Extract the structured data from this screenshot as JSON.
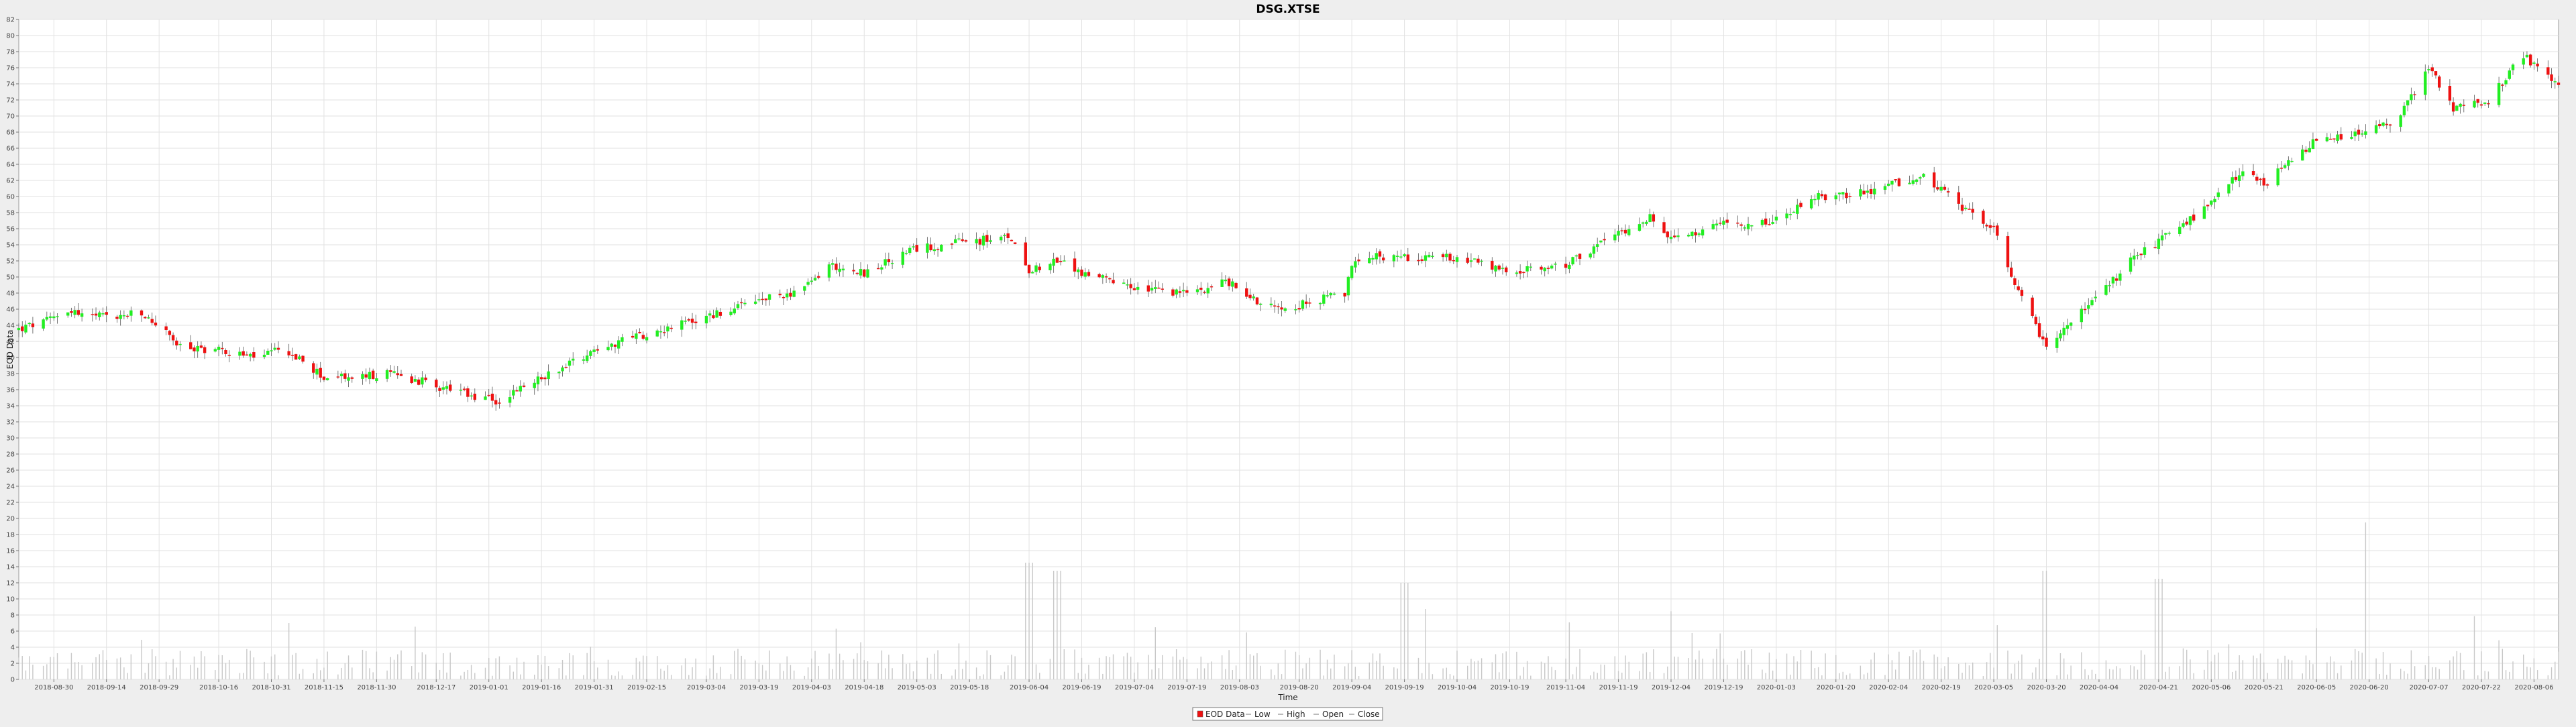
{
  "chart_data": {
    "type": "candlestick",
    "title": "DSG.XTSE",
    "xlabel": "Time",
    "ylabel": "EOD Data",
    "ylim": [
      0,
      82
    ],
    "y_ticks": [
      0,
      2,
      4,
      6,
      8,
      10,
      12,
      14,
      16,
      18,
      20,
      22,
      24,
      26,
      28,
      30,
      32,
      34,
      36,
      38,
      40,
      42,
      44,
      46,
      48,
      50,
      52,
      54,
      56,
      58,
      60,
      62,
      64,
      66,
      68,
      70,
      72,
      74,
      76,
      78,
      80,
      82
    ],
    "x_range": [
      "2018-08-20",
      "2020-08-13"
    ],
    "x_ticks": [
      "2018-08-30",
      "2018-09-14",
      "2018-09-29",
      "2018-10-16",
      "2018-10-31",
      "2018-11-15",
      "2018-11-30",
      "2018-12-17",
      "2019-01-01",
      "2019-01-16",
      "2019-01-31",
      "2019-02-15",
      "2019-03-04",
      "2019-03-19",
      "2019-04-03",
      "2019-04-18",
      "2019-05-03",
      "2019-05-18",
      "2019-06-04",
      "2019-06-19",
      "2019-07-04",
      "2019-07-19",
      "2019-08-03",
      "2019-08-20",
      "2019-09-04",
      "2019-09-19",
      "2019-10-04",
      "2019-10-19",
      "2019-11-04",
      "2019-11-19",
      "2019-12-04",
      "2019-12-19",
      "2020-01-03",
      "2020-01-20",
      "2020-02-04",
      "2020-02-19",
      "2020-03-05",
      "2020-03-20",
      "2020-04-04",
      "2020-04-21",
      "2020-05-06",
      "2020-05-21",
      "2020-06-05",
      "2020-06-20",
      "2020-07-07",
      "2020-07-22",
      "2020-08-06"
    ],
    "grid": true,
    "legend_position": "bottom-center",
    "legend": [
      {
        "label": "EOD Data",
        "symbol": "box"
      },
      {
        "label": "Low",
        "symbol": "line"
      },
      {
        "label": "High",
        "symbol": "line"
      },
      {
        "label": "Open",
        "symbol": "line"
      },
      {
        "label": "Close",
        "symbol": "line"
      }
    ],
    "colors": {
      "up": "#22ee22",
      "down": "#ee1111",
      "volume": "#c8c8c8",
      "wick": "#555555"
    },
    "close_path": [
      [
        "2018-08-20",
        43.5
      ],
      [
        "2018-08-28",
        44.5
      ],
      [
        "2018-09-03",
        46.0
      ],
      [
        "2018-09-08",
        45.2
      ],
      [
        "2018-09-17",
        45.0
      ],
      [
        "2018-09-23",
        45.5
      ],
      [
        "2018-09-29",
        44.0
      ],
      [
        "2018-10-05",
        41.2
      ],
      [
        "2018-10-16",
        41.0
      ],
      [
        "2018-10-26",
        40.0
      ],
      [
        "2018-11-04",
        41.0
      ],
      [
        "2018-11-15",
        37.5
      ],
      [
        "2018-11-24",
        37.5
      ],
      [
        "2018-12-05",
        38.0
      ],
      [
        "2018-12-17",
        36.5
      ],
      [
        "2018-12-28",
        35.0
      ],
      [
        "2019-01-04",
        34.5
      ],
      [
        "2019-01-16",
        37.5
      ],
      [
        "2019-01-31",
        41.0
      ],
      [
        "2019-02-15",
        43.0
      ],
      [
        "2019-03-04",
        45.0
      ],
      [
        "2019-03-19",
        47.0
      ],
      [
        "2019-04-01",
        48.5
      ],
      [
        "2019-04-08",
        51.5
      ],
      [
        "2019-04-18",
        50.5
      ],
      [
        "2019-05-03",
        53.5
      ],
      [
        "2019-05-18",
        54.5
      ],
      [
        "2019-05-30",
        54.8
      ],
      [
        "2019-06-04",
        51.0
      ],
      [
        "2019-06-12",
        52.0
      ],
      [
        "2019-06-19",
        50.5
      ],
      [
        "2019-07-04",
        48.5
      ],
      [
        "2019-07-19",
        48.0
      ],
      [
        "2019-07-30",
        49.5
      ],
      [
        "2019-08-10",
        46.5
      ],
      [
        "2019-08-20",
        46.5
      ],
      [
        "2019-09-02",
        48.0
      ],
      [
        "2019-09-05",
        52.5
      ],
      [
        "2019-09-19",
        52.5
      ],
      [
        "2019-10-04",
        52.5
      ],
      [
        "2019-10-19",
        50.5
      ],
      [
        "2019-11-04",
        51.5
      ],
      [
        "2019-11-19",
        55.5
      ],
      [
        "2019-11-28",
        57.5
      ],
      [
        "2019-12-04",
        54.5
      ],
      [
        "2019-12-19",
        56.5
      ],
      [
        "2020-01-03",
        57.0
      ],
      [
        "2020-01-15",
        60.0
      ],
      [
        "2020-01-30",
        60.5
      ],
      [
        "2020-02-04",
        61.5
      ],
      [
        "2020-02-14",
        62.5
      ],
      [
        "2020-02-25",
        58.5
      ],
      [
        "2020-03-05",
        56.0
      ],
      [
        "2020-03-10",
        49.5
      ],
      [
        "2020-03-17",
        44.0
      ],
      [
        "2020-03-20",
        41.0
      ],
      [
        "2020-03-28",
        45.0
      ],
      [
        "2020-04-04",
        47.5
      ],
      [
        "2020-04-14",
        52.5
      ],
      [
        "2020-04-25",
        55.5
      ],
      [
        "2020-05-06",
        59.0
      ],
      [
        "2020-05-14",
        63.0
      ],
      [
        "2020-05-21",
        61.5
      ],
      [
        "2020-06-05",
        67.0
      ],
      [
        "2020-06-15",
        67.5
      ],
      [
        "2020-06-28",
        69.5
      ],
      [
        "2020-07-07",
        76.0
      ],
      [
        "2020-07-14",
        71.0
      ],
      [
        "2020-07-24",
        72.0
      ],
      [
        "2020-08-03",
        77.5
      ],
      [
        "2020-08-13",
        73.5
      ]
    ],
    "volume_range": [
      0,
      14
    ],
    "volume_spikes": [
      [
        "2019-06-04",
        14.5
      ],
      [
        "2019-06-12",
        13.5
      ],
      [
        "2020-03-20",
        13.5
      ],
      [
        "2020-06-20",
        19.5
      ],
      [
        "2019-09-19",
        12.0
      ],
      [
        "2020-04-21",
        12.5
      ]
    ]
  }
}
